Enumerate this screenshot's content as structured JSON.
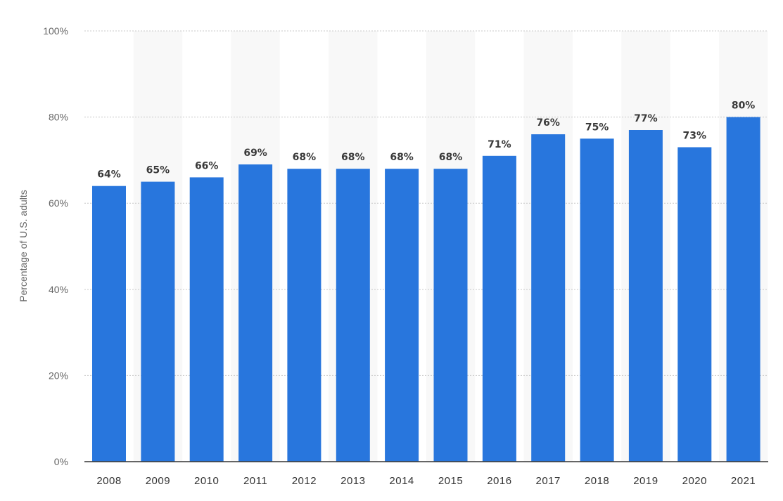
{
  "chart_data": {
    "type": "bar",
    "categories": [
      "2008",
      "2009",
      "2010",
      "2011",
      "2012",
      "2013",
      "2014",
      "2015",
      "2016",
      "2017",
      "2018",
      "2019",
      "2020",
      "2021"
    ],
    "values": [
      64,
      65,
      66,
      69,
      68,
      68,
      68,
      68,
      71,
      76,
      75,
      77,
      73,
      80
    ],
    "data_labels": [
      "64%",
      "65%",
      "66%",
      "69%",
      "68%",
      "68%",
      "68%",
      "68%",
      "71%",
      "76%",
      "75%",
      "77%",
      "73%",
      "80%"
    ],
    "title": "",
    "xlabel": "",
    "ylabel": "Percentage of U.S. adults",
    "ylim": [
      0,
      100
    ],
    "yticks": [
      0,
      20,
      40,
      60,
      80,
      100
    ],
    "ytick_labels": [
      "0%",
      "20%",
      "40%",
      "60%",
      "80%",
      "100%"
    ],
    "grid": true,
    "bar_color": "#2876dd",
    "band_color": "#f8f8f8"
  }
}
